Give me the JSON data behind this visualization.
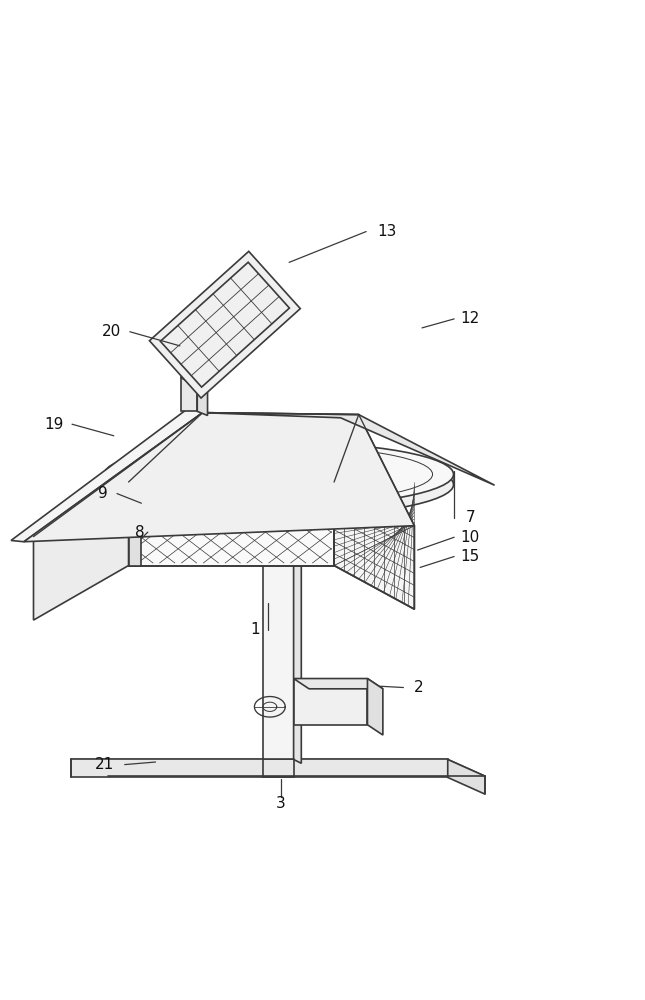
{
  "bg_color": "#ffffff",
  "line_color": "#3a3a3a",
  "line_width": 1.2,
  "label_fontsize": 11
}
